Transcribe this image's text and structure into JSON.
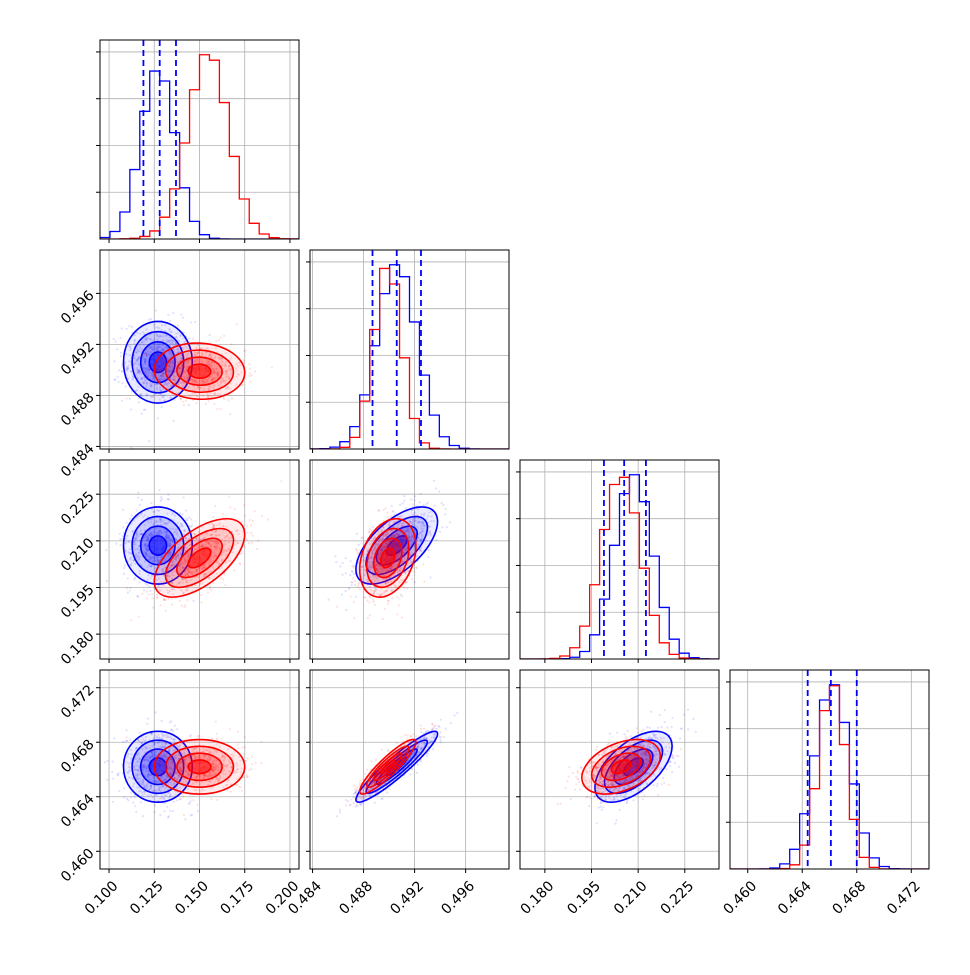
{
  "chart_data": {
    "type": "corner",
    "title": "",
    "parameters": [
      {
        "range": [
          0.095,
          0.205
        ],
        "ticks": [
          0.1,
          0.125,
          0.15,
          0.175,
          0.2
        ],
        "tick_labels": [
          "0.100",
          "0.125",
          "0.150",
          "0.175",
          "0.200"
        ]
      },
      {
        "range": [
          0.4838,
          0.4994
        ],
        "ticks": [
          0.484,
          0.488,
          0.492,
          0.496
        ],
        "tick_labels": [
          "0.484",
          "0.488",
          "0.492",
          "0.496"
        ]
      },
      {
        "range": [
          0.172,
          0.236
        ],
        "ticks": [
          0.18,
          0.195,
          0.21,
          0.225
        ],
        "tick_labels": [
          "0.180",
          "0.195",
          "0.210",
          "0.225"
        ]
      },
      {
        "range": [
          0.4587,
          0.4733
        ],
        "ticks": [
          0.46,
          0.464,
          0.468,
          0.472
        ],
        "tick_labels": [
          "0.460",
          "0.464",
          "0.468",
          "0.472"
        ]
      }
    ],
    "series": [
      {
        "color": "#0000ff",
        "means": [
          0.127,
          0.4906,
          0.2085,
          0.4662
        ],
        "stds": [
          0.0095,
          0.0016,
          0.0062,
          0.0013
        ],
        "correlations": [
          [
            0,
            1,
            0.0
          ],
          [
            0,
            2,
            0.0
          ],
          [
            1,
            2,
            0.62
          ],
          [
            0,
            3,
            0.0
          ],
          [
            1,
            3,
            0.93
          ],
          [
            2,
            3,
            0.58
          ]
        ],
        "quantiles": [
          [
            0.119,
            0.128,
            0.137
          ],
          [
            0.4887,
            0.4906,
            0.4925
          ],
          [
            0.199,
            0.2055,
            0.2125
          ],
          [
            0.4644,
            0.4661,
            0.468
          ]
        ]
      },
      {
        "color": "#ff0000",
        "means": [
          0.15,
          0.4899,
          0.2045,
          0.4662
        ],
        "stds": [
          0.0125,
          0.0011,
          0.0063,
          0.001
        ],
        "correlations": [
          [
            0,
            1,
            -0.05
          ],
          [
            0,
            2,
            0.6
          ],
          [
            1,
            2,
            0.3
          ],
          [
            0,
            3,
            0.0
          ],
          [
            1,
            3,
            0.9
          ],
          [
            2,
            3,
            0.4
          ]
        ],
        "quantiles": []
      }
    ],
    "quantile_line_color": "#0000ff",
    "contour_levels": [
      0.5,
      1.0,
      1.5,
      2.0
    ],
    "grid": true
  }
}
